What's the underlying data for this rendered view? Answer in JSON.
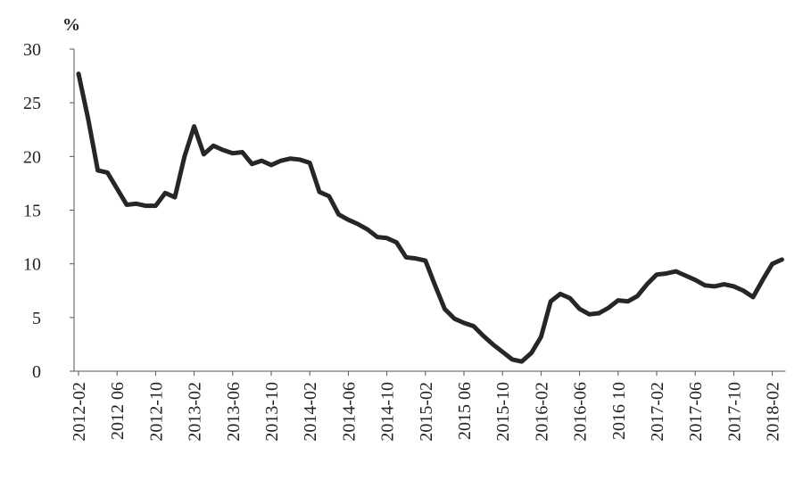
{
  "chart_data": {
    "type": "line",
    "y_unit_label": "%",
    "categories": [
      "2012-02",
      null,
      null,
      null,
      "2012 06",
      null,
      null,
      null,
      "2012-10",
      null,
      null,
      null,
      "2013-02",
      null,
      null,
      null,
      "2013-06",
      null,
      null,
      null,
      "2013-10",
      null,
      null,
      null,
      "2014-02",
      null,
      null,
      null,
      "2014-06",
      null,
      null,
      null,
      "2014-10",
      null,
      null,
      null,
      "2015-02",
      null,
      null,
      null,
      "2015 06",
      null,
      null,
      null,
      "2015-10",
      null,
      null,
      null,
      "2016-02",
      null,
      null,
      null,
      "2016-06",
      null,
      null,
      null,
      "2016 10",
      null,
      null,
      null,
      "2017-02",
      null,
      null,
      null,
      "2017-06",
      null,
      null,
      null,
      "2017-10",
      null,
      null,
      null,
      "2018-02",
      null
    ],
    "series": [
      {
        "color": "#262626",
        "values": [
          27.7,
          23.5,
          18.7,
          18.5,
          17,
          15.5,
          15.6,
          15.4,
          15.4,
          16.6,
          16.2,
          20,
          22.8,
          20.2,
          21,
          20.6,
          20.3,
          20.4,
          19.3,
          19.6,
          19.2,
          19.6,
          19.8,
          19.7,
          19.4,
          16.7,
          16.3,
          14.6,
          14.1,
          13.7,
          13.2,
          12.5,
          12.4,
          12,
          10.6,
          10.5,
          10.3,
          8,
          5.8,
          4.9,
          4.5,
          4.2,
          3.3,
          2.5,
          1.8,
          1.1,
          0.9,
          1.7,
          3.2,
          6.5,
          7.2,
          6.8,
          5.8,
          5.3,
          5.4,
          5.9,
          6.6,
          6.5,
          7,
          8.1,
          9,
          9.1,
          9.3,
          8.9,
          8.5,
          8,
          7.9,
          8.1,
          7.9,
          7.5,
          6.9,
          8.5,
          10,
          10.4
        ]
      }
    ],
    "ylim": [
      0,
      30
    ],
    "yticks": [
      0,
      5,
      10,
      15,
      20,
      25,
      30
    ]
  }
}
